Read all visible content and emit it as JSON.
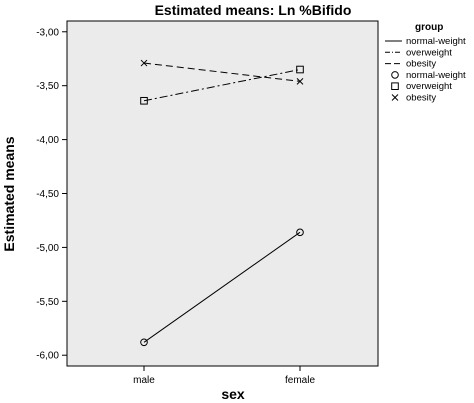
{
  "chart_data": {
    "type": "line",
    "title": "Estimated means: Ln %Bifido",
    "xlabel": "sex",
    "ylabel": "Estimated means",
    "categories": [
      "male",
      "female"
    ],
    "ylim": [
      -6.1,
      -2.9
    ],
    "yticks": [
      -3.0,
      -3.5,
      -4.0,
      -4.5,
      -5.0,
      -5.5,
      -6.0
    ],
    "ytick_labels": [
      "-3,00",
      "-3,50",
      "-4,00",
      "-4,50",
      "-5,00",
      "-5,50",
      "-6,00"
    ],
    "grid": false,
    "legend": {
      "title": "group",
      "placement": "right",
      "line_entries": [
        "normal-weight",
        "overweight",
        "obesity"
      ],
      "marker_entries": [
        "normal-weight",
        "overweight",
        "obesity"
      ]
    },
    "series": [
      {
        "name": "normal-weight",
        "values": [
          -5.88,
          -4.86
        ],
        "marker": "circle",
        "dash": "solid"
      },
      {
        "name": "overweight",
        "values": [
          -3.64,
          -3.35
        ],
        "marker": "square",
        "dash": "dashdot"
      },
      {
        "name": "obesity",
        "values": [
          -3.29,
          -3.46
        ],
        "marker": "x",
        "dash": "dashed"
      }
    ],
    "colors": {
      "plot_background": "#ebebeb",
      "line": "#000000"
    }
  }
}
